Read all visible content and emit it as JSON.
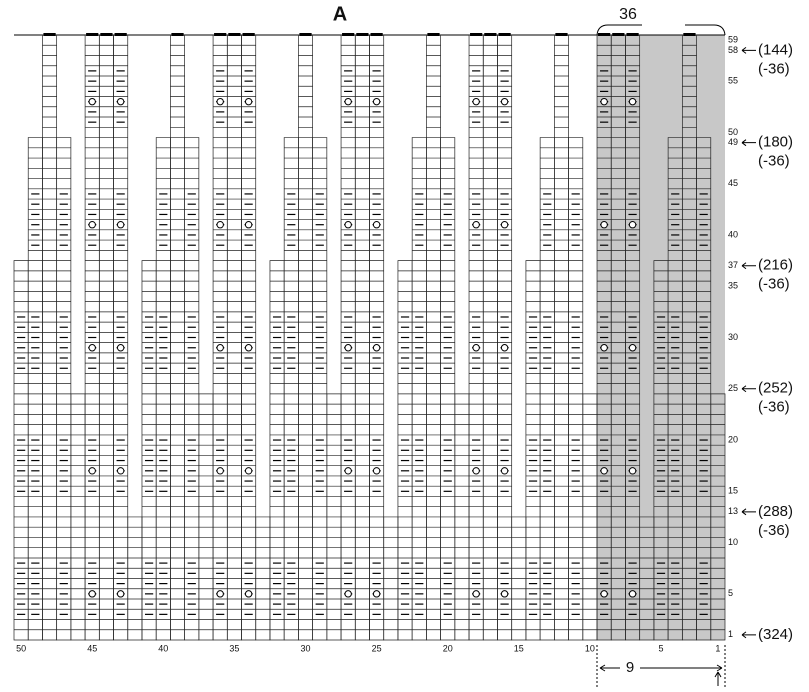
{
  "title": "A",
  "repeat_label": "36",
  "repeat_width_label": "9",
  "row_labels": [
    59,
    58,
    55,
    50,
    49,
    45,
    40,
    37,
    35,
    30,
    25,
    20,
    15,
    13,
    10,
    5,
    1
  ],
  "column_labels": [
    50,
    45,
    40,
    35,
    30,
    25,
    20,
    15,
    10,
    5,
    1
  ],
  "stitch_counts": [
    {
      "row": 58,
      "count": "(144)",
      "change": "(-36)"
    },
    {
      "row": 49,
      "count": "(180)",
      "change": "(-36)"
    },
    {
      "row": 37,
      "count": "(216)",
      "change": "(-36)"
    },
    {
      "row": 25,
      "count": "(252)",
      "change": "(-36)"
    },
    {
      "row": 13,
      "count": "(288)",
      "change": "(-36)"
    },
    {
      "row": 1,
      "count": "(324)"
    }
  ]
}
